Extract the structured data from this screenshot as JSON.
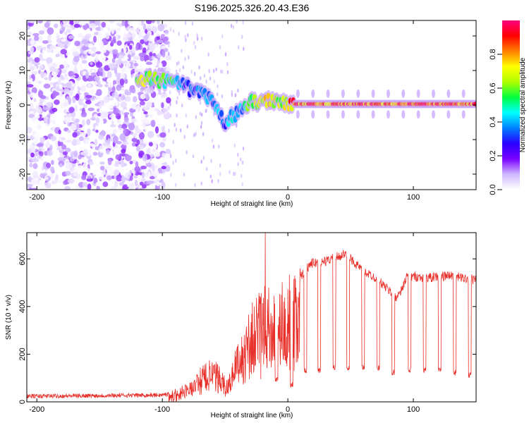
{
  "title": "S196.2025.326.20.43.E36",
  "chart_data": [
    {
      "type": "heatmap",
      "name": "spectrogram",
      "xlabel": "Height of straight line (km)",
      "ylabel": "Frequency (Hz)",
      "xlim": [
        -208,
        150
      ],
      "ylim": [
        -24.5,
        24.5
      ],
      "xticks": [
        -200,
        -100,
        0,
        100
      ],
      "yticks": [
        -20,
        -10,
        0,
        10,
        20
      ],
      "colorbar": {
        "label": "Normalized spectral amplitude",
        "range": [
          0,
          1
        ],
        "ticks": [
          0.0,
          0.2,
          0.4,
          0.6,
          0.8
        ],
        "tick_labels": [
          "0.0",
          "0.2",
          "0.4",
          "0.6",
          "0.8"
        ],
        "colormap": [
          "#ffffff",
          "#d0b8ff",
          "#7a00ff",
          "#2a00ff",
          "#0080ff",
          "#00ffff",
          "#00ff40",
          "#b0ff00",
          "#ffff00",
          "#ff8000",
          "#ff0000",
          "#ff0080"
        ]
      },
      "noise_region_x": [
        -208,
        -95
      ],
      "ridge": [
        {
          "x": -120,
          "y": 8.0,
          "a": 0.7
        },
        {
          "x": -90,
          "y": 6.5,
          "a": 0.5
        },
        {
          "x": -82,
          "y": 5.5,
          "a": 0.3
        },
        {
          "x": -75,
          "y": 4.0,
          "a": 0.35
        },
        {
          "x": -68,
          "y": 3.5,
          "a": 0.4
        },
        {
          "x": -60,
          "y": 0.5,
          "a": 0.35
        },
        {
          "x": -55,
          "y": -2.5,
          "a": 0.4
        },
        {
          "x": -50,
          "y": -5.0,
          "a": 0.35
        },
        {
          "x": -45,
          "y": -3.5,
          "a": 0.45
        },
        {
          "x": -38,
          "y": -2.0,
          "a": 0.4
        },
        {
          "x": -30,
          "y": 1.0,
          "a": 0.6
        },
        {
          "x": -20,
          "y": 1.0,
          "a": 0.7
        },
        {
          "x": -12,
          "y": 1.5,
          "a": 0.7
        },
        {
          "x": -5,
          "y": 1.0,
          "a": 0.6
        },
        {
          "x": 5,
          "y": 0.3,
          "a": 0.9
        },
        {
          "x": 150,
          "y": 0.3,
          "a": 0.95
        }
      ]
    },
    {
      "type": "line",
      "name": "snr",
      "xlabel": "Height of straight line (km)",
      "ylabel": "SNR (10 * v/v)",
      "xlim": [
        -208,
        150
      ],
      "ylim": [
        0,
        710
      ],
      "xticks": [
        -200,
        -100,
        0,
        100
      ],
      "yticks": [
        0,
        200,
        400,
        600
      ],
      "color": "#e8302a",
      "series_envelope": [
        {
          "x": -208,
          "y": 20
        },
        {
          "x": -100,
          "y": 25
        },
        {
          "x": -95,
          "y": 30
        },
        {
          "x": -85,
          "y": 55
        },
        {
          "x": -75,
          "y": 90
        },
        {
          "x": -65,
          "y": 160
        },
        {
          "x": -55,
          "y": 150
        },
        {
          "x": -48,
          "y": 80
        },
        {
          "x": -42,
          "y": 200
        },
        {
          "x": -35,
          "y": 280
        },
        {
          "x": -28,
          "y": 380
        },
        {
          "x": -20,
          "y": 430
        },
        {
          "x": -10,
          "y": 440
        },
        {
          "x": -2,
          "y": 460
        },
        {
          "x": 8,
          "y": 510
        },
        {
          "x": 18,
          "y": 580
        },
        {
          "x": 30,
          "y": 590
        },
        {
          "x": 45,
          "y": 620
        },
        {
          "x": 52,
          "y": 590
        },
        {
          "x": 60,
          "y": 550
        },
        {
          "x": 70,
          "y": 520
        },
        {
          "x": 80,
          "y": 470
        },
        {
          "x": 86,
          "y": 440
        },
        {
          "x": 90,
          "y": 460
        },
        {
          "x": 95,
          "y": 530
        },
        {
          "x": 110,
          "y": 520
        },
        {
          "x": 130,
          "y": 530
        },
        {
          "x": 150,
          "y": 510
        }
      ],
      "spike": {
        "x": -18,
        "y": 710
      },
      "dropouts": [
        {
          "x": -9,
          "y": 80
        },
        {
          "x": 3,
          "y": 60
        },
        {
          "x": 14,
          "y": 120
        },
        {
          "x": 25,
          "y": 120
        },
        {
          "x": 37,
          "y": 130
        },
        {
          "x": 48,
          "y": 130
        },
        {
          "x": 60,
          "y": 130
        },
        {
          "x": 72,
          "y": 130
        },
        {
          "x": 84,
          "y": 110
        },
        {
          "x": 97,
          "y": 120
        },
        {
          "x": 109,
          "y": 120
        },
        {
          "x": 121,
          "y": 120
        },
        {
          "x": 133,
          "y": 110
        },
        {
          "x": 145,
          "y": 100
        }
      ]
    }
  ]
}
